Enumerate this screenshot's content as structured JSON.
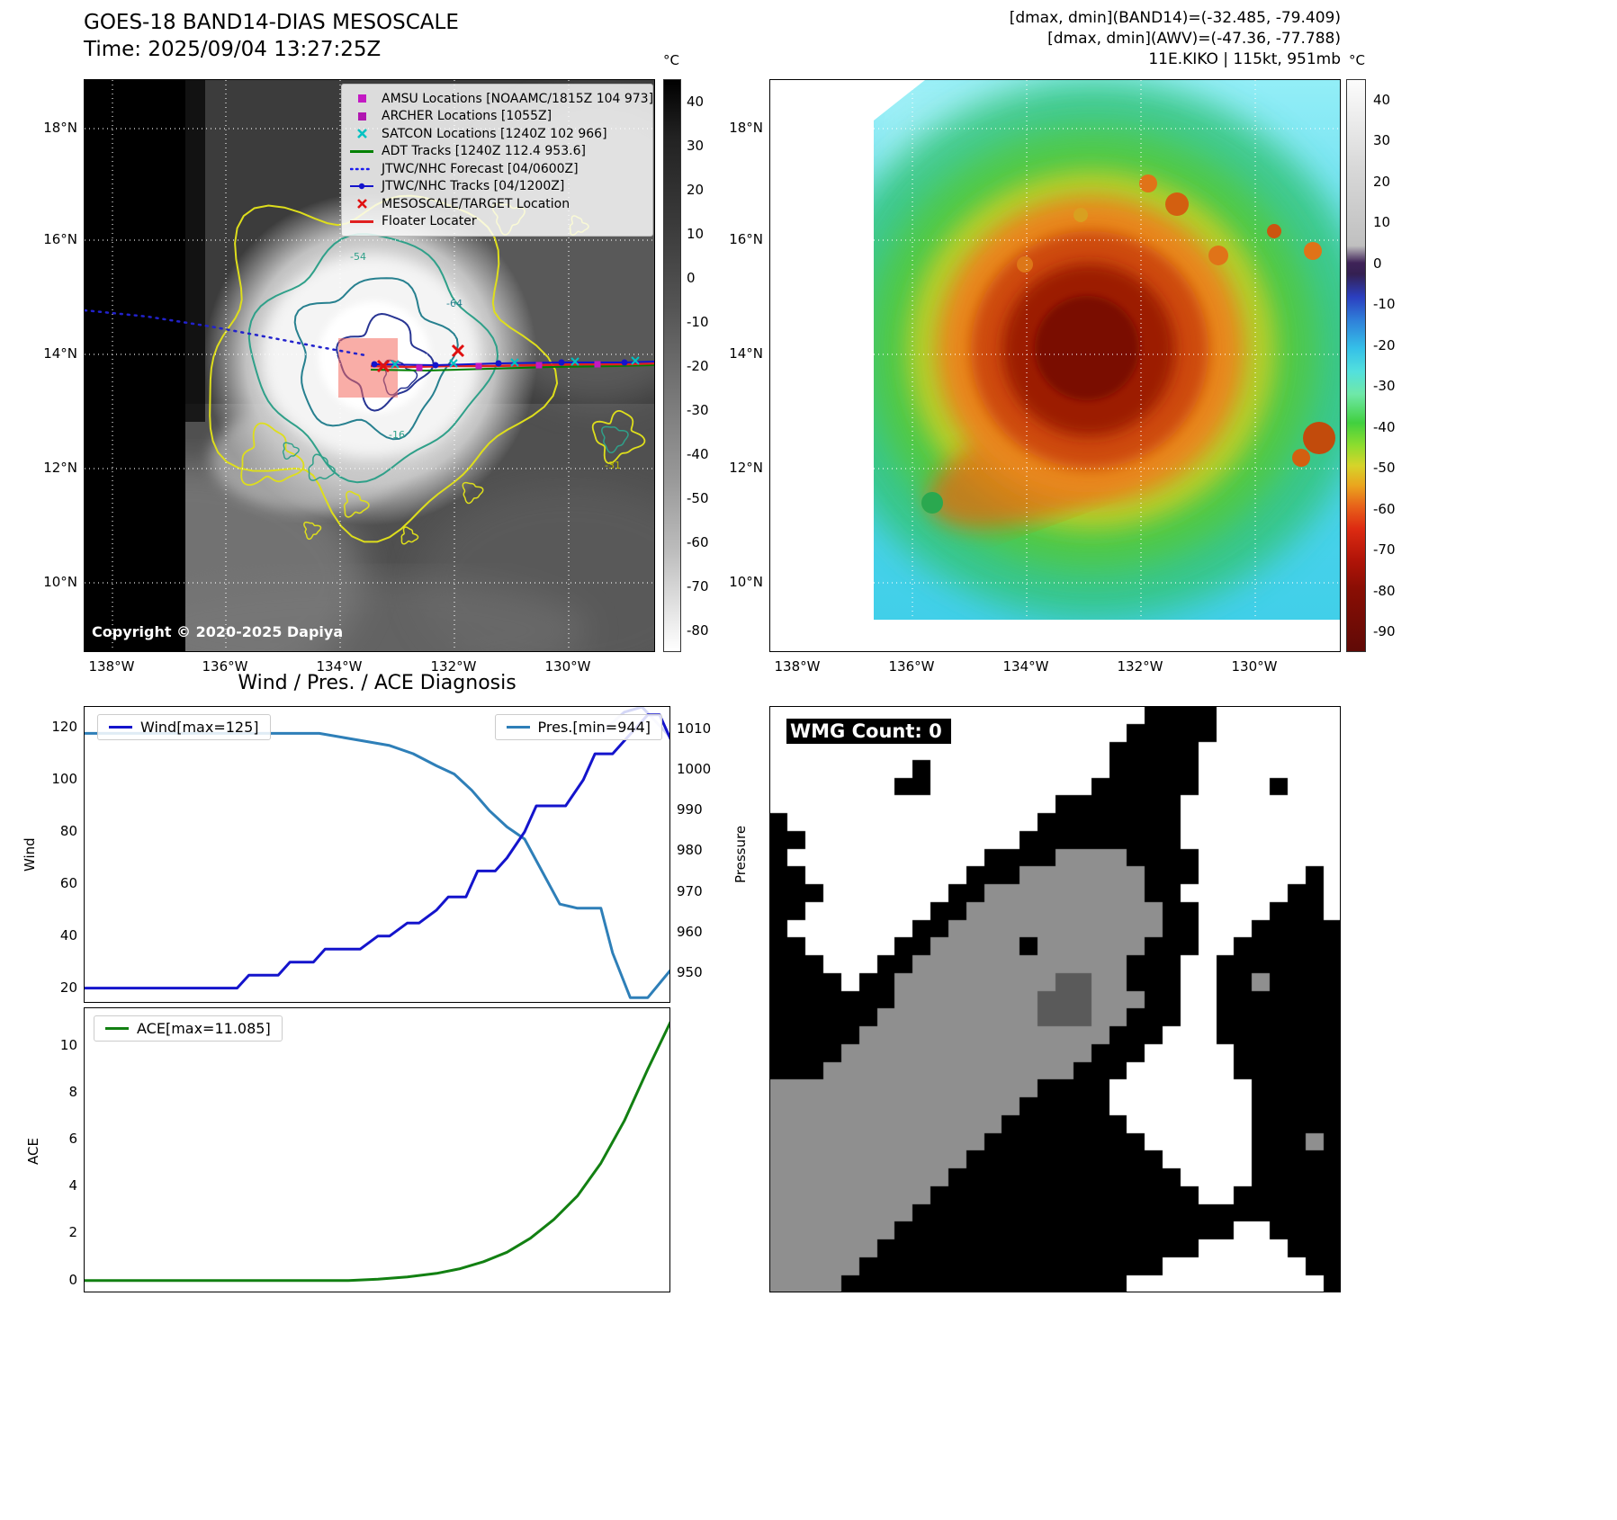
{
  "panel_tl": {
    "title": "GOES-18 BAND14-DIAS MESOSCALE",
    "time_line": "Time: 2025/09/04 13:27:25Z",
    "copyright": "Copyright © 2020-2025 Dapiya",
    "x_ticks": [
      "138°W",
      "136°W",
      "134°W",
      "132°W",
      "130°W"
    ],
    "y_ticks": [
      "18°N",
      "16°N",
      "14°N",
      "12°N",
      "10°N"
    ],
    "colorbar": {
      "unit": "°C",
      "ticks": [
        "40",
        "30",
        "20",
        "10",
        "0",
        "-10",
        "-20",
        "-30",
        "-40",
        "-50",
        "-60",
        "-70",
        "-80"
      ]
    },
    "legend": [
      {
        "marker": "square",
        "color": "#c319c3",
        "label": "AMSU Locations [NOAAMC/1815Z 104 973]"
      },
      {
        "marker": "square",
        "color": "#b017b0",
        "label": "ARCHER Locations [1055Z]"
      },
      {
        "marker": "x",
        "color": "#00c2c2",
        "label": "SATCON Locations [1240Z 102 966]"
      },
      {
        "marker": "line",
        "color": "#008000",
        "label": "ADT Tracks [1240Z 112.4 953.6]"
      },
      {
        "marker": "dotted-line",
        "color": "#1a1aee",
        "label": "JTWC/NHC Forecast [04/0600Z]"
      },
      {
        "marker": "line-dot",
        "color": "#1414cc",
        "label": "JTWC/NHC Tracks [04/1200Z]"
      },
      {
        "marker": "x",
        "color": "#e01010",
        "label": "MESOSCALE/TARGET Location"
      },
      {
        "marker": "line",
        "color": "#e02020",
        "label": "Floater Locater"
      }
    ],
    "contour_labels": [
      "-54",
      "-64",
      "-16",
      "-31"
    ]
  },
  "panel_tr": {
    "header_lines": [
      "[dmax, dmin](BAND14)=(-32.485, -79.409)",
      "[dmax, dmin](AWV)=(-47.36, -77.788)",
      "11E.KIKO | 115kt, 951mb"
    ],
    "x_ticks": [
      "138°W",
      "136°W",
      "134°W",
      "132°W",
      "130°W"
    ],
    "y_ticks": [
      "18°N",
      "16°N",
      "14°N",
      "12°N",
      "10°N"
    ],
    "colorbar": {
      "unit": "°C",
      "ticks": [
        "40",
        "30",
        "20",
        "10",
        "0",
        "-10",
        "-20",
        "-30",
        "-40",
        "-50",
        "-60",
        "-70",
        "-80",
        "-90"
      ]
    }
  },
  "panel_bl": {
    "title": "Wind / Pres. / ACE Diagnosis"
  },
  "panel_br": {
    "label": "WMG Count: 0",
    "palette": {
      "w": "#ffffff",
      "b": "#000000",
      "g": "#8f8f8f",
      "d": "#5a5a5a"
    },
    "grid_rows": [
      "wwwwwwwwwwwwwwwwwwwwwbbbbwwwwwww",
      "wwwwwwwwwwwwwwwwwwwwbbbbbwwwwwww",
      "wwwwwwwwwwwwwwwwwwwbbbbbwwwwwwww",
      "wwwwwwwwbwwwwwwwwwwbbbbbwwwwwwww",
      "wwwwwwwbbwwwwwwwwwbbbbbbwwwwbwww",
      "wwwwwwwwwwwwwwwwbbbbbbbwwwwwwwww",
      "bwwwwwwwwwwwwwwbbbbbbbbwwwwwwwww",
      "bbwwwwwwwwwwwwbbbbbbbbbwwwwwwwww",
      "bwwwwwwwwwwwbbbbggggbbbbwwwwwwww",
      "bbwwwwwwwwwbbbgggggggbbbwwwwwwbw",
      "bbbwwwwwwwbbgggggggggbbwwwwwwbbw",
      "bbwwwwwwwbbgggggggggggbbwwwwbbbw",
      "bwwwwwwwbbggggggggggggbbwwwbbbbb",
      "bbwwwwwbbgggggbggggggbbbwwbbbbbb",
      "bbbwwwbbggggggggggggbbbwwbbbbbbb",
      "bbbbwbbgggggggggddggbbbwwbbgbbbb",
      "bbbbbbbggggggggdddgggbbwwbbbbbbb",
      "bbbbbbgggggggggdddggbbbwwbbbbbbb",
      "bbbbbggggggggggggggbbbwwwbbbbbbb",
      "bbbbggggggggggggggbbbwwwwwbbbbbb",
      "bbbggggggggggggggbbbwwwwwwbbbbbb",
      "gggggggggggggggbbbbwwwwwwwwbbbbb",
      "ggggggggggggggbbbbbwwwwwwwwbbbbb",
      "gggggggggggggbbbbbbbwwwwwwwbbbbb",
      "ggggggggggggbbbbbbbbbwwwwwwbbbgb",
      "gggggggggggbbbbbbbbbbbwwwwwbbbbb",
      "ggggggggggbbbbbbbbbbbbbwwwwbbbbb",
      "gggggggggbbbbbbbbbbbbbbbwwbbbbbb",
      "ggggggggbbbbbbbbbbbbbbbbbbbbbbbb",
      "gggggggbbbbbbbbbbbbbbbbbbbwwbbbb",
      "ggggggbbbbbbbbbbbbbbbbbbwwwwwbbb",
      "gggggbbbbbbbbbbbbbbbbbwwwwwwwwbb",
      "ggggbbbbbbbbbbbbbbbbwwwwwwwwwwwb"
    ]
  },
  "chart_data": [
    {
      "type": "line",
      "title": "Wind / Pres. / ACE Diagnosis",
      "x_range": [
        0,
        100
      ],
      "series": [
        {
          "name": "Wind[max=125]",
          "color": "#1414cc",
          "axis": "left",
          "x": [
            0,
            26,
            28,
            33,
            35,
            39,
            41,
            45,
            47,
            50,
            52,
            55,
            57,
            60,
            62,
            65,
            67,
            70,
            72,
            75,
            77,
            80,
            82,
            85,
            87,
            90,
            92,
            94,
            96,
            98,
            100
          ],
          "y": [
            20,
            20,
            25,
            25,
            30,
            30,
            35,
            35,
            35,
            40,
            40,
            45,
            45,
            50,
            55,
            55,
            65,
            65,
            70,
            80,
            90,
            90,
            90,
            100,
            110,
            110,
            115,
            120,
            125,
            125,
            115
          ]
        },
        {
          "name": "Pres.[min=944]",
          "color": "#2e7fb8",
          "axis": "right",
          "x": [
            0,
            40,
            44,
            48,
            52,
            56,
            60,
            63,
            66,
            69,
            72,
            75,
            78,
            81,
            84,
            88,
            90,
            93,
            96,
            100
          ],
          "y": [
            1009,
            1009,
            1008,
            1007,
            1006,
            1004,
            1001,
            999,
            995,
            990,
            986,
            983,
            975,
            967,
            966,
            966,
            955,
            944,
            944,
            951
          ]
        },
        {
          "name": "wind-forecast-overlay",
          "color": "#b7bdf0",
          "axis": "left",
          "faint": true,
          "x": [
            88,
            92,
            95,
            100
          ],
          "y": [
            118,
            126,
            128,
            116
          ]
        }
      ],
      "left_axis": {
        "label": "Wind",
        "ticks": [
          20,
          40,
          60,
          80,
          100,
          120
        ],
        "range": [
          14,
          128
        ]
      },
      "right_axis": {
        "label": "Pressure",
        "ticks": [
          950,
          960,
          970,
          980,
          990,
          1000,
          1010
        ],
        "range": [
          942.5,
          1015.5
        ]
      }
    },
    {
      "type": "line",
      "x_range": [
        0,
        100
      ],
      "series": [
        {
          "name": "ACE[max=11.085]",
          "color": "#128012",
          "axis": "left",
          "x": [
            0,
            45,
            50,
            55,
            60,
            64,
            68,
            72,
            76,
            80,
            84,
            88,
            92,
            96,
            100
          ],
          "y": [
            0,
            0,
            0.05,
            0.15,
            0.3,
            0.5,
            0.8,
            1.2,
            1.8,
            2.6,
            3.6,
            5.0,
            6.8,
            9.0,
            11.085
          ]
        }
      ],
      "left_axis": {
        "label": "ACE",
        "ticks": [
          0,
          2,
          4,
          6,
          8,
          10
        ],
        "range": [
          -0.55,
          11.6
        ]
      }
    }
  ]
}
